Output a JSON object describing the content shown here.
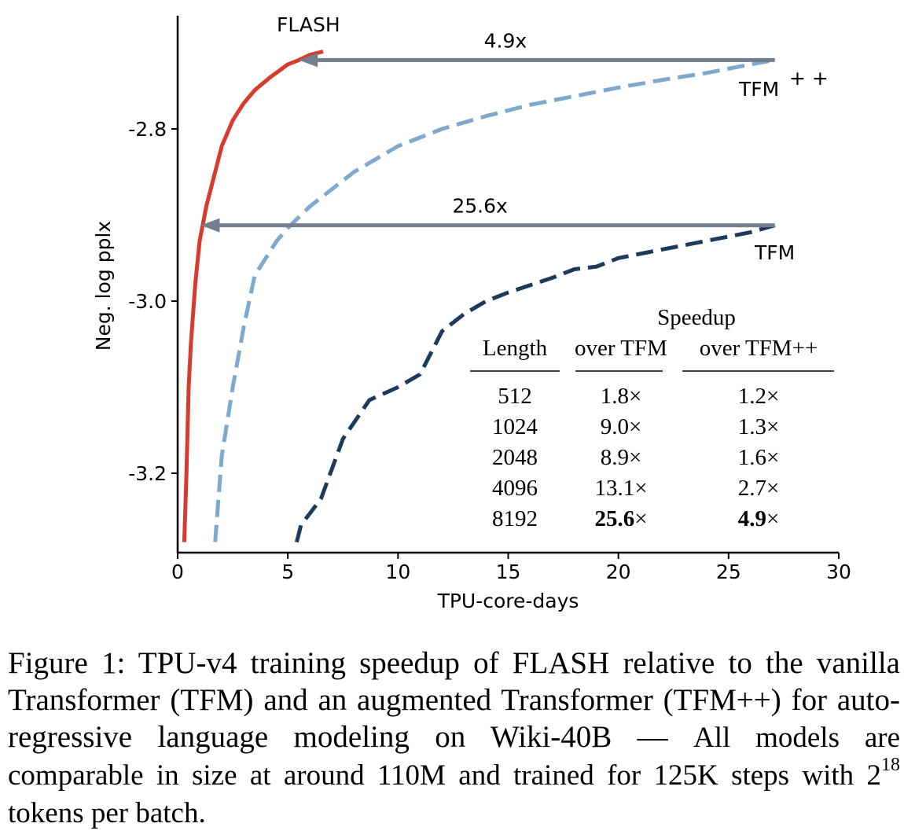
{
  "chart_data": {
    "type": "line",
    "xlabel": "TPU-core-days",
    "ylabel": "Neg. log pplx",
    "xlim": [
      0,
      30
    ],
    "ylim": [
      -3.28,
      -2.65
    ],
    "xticks": [
      0,
      5,
      10,
      15,
      20,
      25,
      30
    ],
    "xtick_labels": [
      "0",
      "5",
      "10",
      "15",
      "20",
      "25",
      "30"
    ],
    "yticks": [
      -2.8,
      -3.0,
      -3.2
    ],
    "ytick_labels": [
      "-2.8",
      "-3.0",
      "-3.2"
    ],
    "grid": false,
    "series": [
      {
        "name": "FLASH",
        "color": "#d73a2e",
        "style": "solid",
        "points": [
          [
            0.3,
            -3.28
          ],
          [
            0.4,
            -3.2
          ],
          [
            0.5,
            -3.1
          ],
          [
            0.6,
            -3.05
          ],
          [
            0.8,
            -2.98
          ],
          [
            1.0,
            -2.93
          ],
          [
            1.3,
            -2.89
          ],
          [
            1.7,
            -2.85
          ],
          [
            2.0,
            -2.82
          ],
          [
            2.5,
            -2.79
          ],
          [
            3.0,
            -2.77
          ],
          [
            3.5,
            -2.755
          ],
          [
            4.2,
            -2.74
          ],
          [
            5.0,
            -2.725
          ],
          [
            5.5,
            -2.72
          ],
          [
            6.0,
            -2.714
          ],
          [
            6.6,
            -2.71
          ]
        ]
      },
      {
        "name": "TFM++",
        "label_text": "TFM",
        "label_sup": "+ +",
        "color": "#7ea8cc",
        "style": "dashed",
        "points": [
          [
            1.7,
            -3.28
          ],
          [
            2.0,
            -3.18
          ],
          [
            2.5,
            -3.1
          ],
          [
            3.0,
            -3.03
          ],
          [
            3.5,
            -2.97
          ],
          [
            4.0,
            -2.95
          ],
          [
            4.5,
            -2.93
          ],
          [
            5.0,
            -2.915
          ],
          [
            6.0,
            -2.89
          ],
          [
            7.0,
            -2.87
          ],
          [
            8.0,
            -2.85
          ],
          [
            9.0,
            -2.835
          ],
          [
            10.0,
            -2.82
          ],
          [
            12.0,
            -2.8
          ],
          [
            14.0,
            -2.785
          ],
          [
            16.0,
            -2.772
          ],
          [
            18.0,
            -2.762
          ],
          [
            20.0,
            -2.752
          ],
          [
            22.0,
            -2.743
          ],
          [
            24.0,
            -2.735
          ],
          [
            26.0,
            -2.725
          ],
          [
            27.1,
            -2.72
          ]
        ]
      },
      {
        "name": "TFM",
        "label_text": "TFM",
        "color": "#1e3a5a",
        "style": "dashed",
        "points": [
          [
            5.4,
            -3.28
          ],
          [
            5.6,
            -3.26
          ],
          [
            6.5,
            -3.23
          ],
          [
            7.5,
            -3.16
          ],
          [
            8.7,
            -3.115
          ],
          [
            10.0,
            -3.1
          ],
          [
            11.0,
            -3.085
          ],
          [
            12.0,
            -3.035
          ],
          [
            13.0,
            -3.015
          ],
          [
            14.0,
            -3.0
          ],
          [
            15.0,
            -2.99
          ],
          [
            17.0,
            -2.973
          ],
          [
            18.0,
            -2.963
          ],
          [
            19.0,
            -2.96
          ],
          [
            20.0,
            -2.95
          ],
          [
            22.0,
            -2.94
          ],
          [
            24.0,
            -2.93
          ],
          [
            26.0,
            -2.92
          ],
          [
            27.1,
            -2.912
          ]
        ]
      }
    ],
    "annotations": [
      {
        "text": "4.9x",
        "from_x": 27.1,
        "to_x": 5.5,
        "y": -2.72,
        "color": "#737f8e"
      },
      {
        "text": "25.6x",
        "from_x": 27.1,
        "to_x": 1.05,
        "y": -2.912,
        "color": "#737f8e"
      }
    ],
    "inset_table": {
      "group_header": "Speedup",
      "columns": [
        "Length",
        "over TFM",
        "over TFM++"
      ],
      "rows": [
        [
          "512",
          "1.8",
          "1.2"
        ],
        [
          "1024",
          "9.0",
          "1.3"
        ],
        [
          "2048",
          "8.9",
          "1.6"
        ],
        [
          "4096",
          "13.1",
          "2.7"
        ],
        [
          "8192",
          "25.6",
          "4.9"
        ]
      ],
      "bold_row": 4,
      "times_symbol": "×"
    }
  },
  "caption": {
    "lead": "Figure 1: TPU-v4 training speedup of FLASH relative to the vanilla Transformer (TFM) and an augmented Transformer (TFM++) for auto-regressive language modeling on Wiki-40B — ",
    "rest_a": "All models are comparable in size at around 110M and trained for 125K steps with 2",
    "sup": "18",
    "rest_b": " tokens per batch."
  }
}
